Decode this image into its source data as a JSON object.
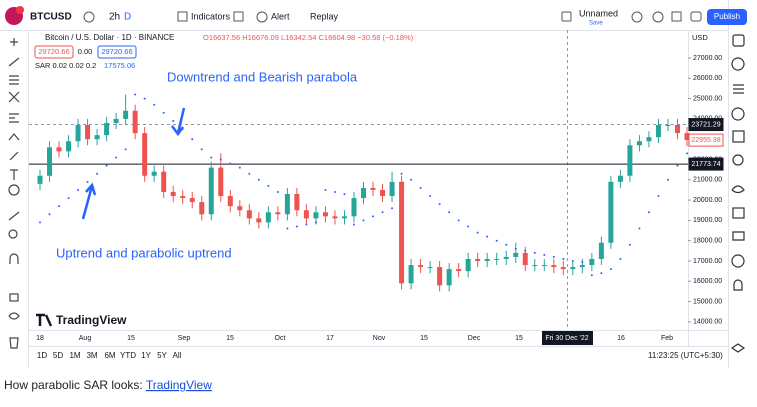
{
  "toolbar": {
    "symbol": "BTCUSD",
    "interval": "2h",
    "interval_active": "D",
    "indicators": "Indicators",
    "alert": "Alert",
    "replay": "Replay",
    "layout_name": "Unnamed",
    "save": "Save",
    "publish": "Publish"
  },
  "legend": {
    "title": "Bitcoin / U.S. Dollar · 1D · BINANCE",
    "ohlc": "O16637.56 H16676.09 L16342.54 C16604.98 −30.58 (−0.18%)",
    "sell": "29720.66",
    "spread": "0.00",
    "buy": "29720.66",
    "indicator": "SAR 0.02 0.02 0.2",
    "indicator_value": "17575.06"
  },
  "annotations": [
    "Downtrend and Bearish parabola",
    "Uptrend and parabolic uptrend"
  ],
  "watermark": "TradingView",
  "chart": {
    "type": "candlestick",
    "currency": "USD",
    "up_color": "#26a69a",
    "down_color": "#ef5350",
    "sar_color": "#2962ff",
    "ylim": [
      13600,
      28380
    ],
    "yticks": [
      {
        "value": 27000,
        "label": "27000.00"
      },
      {
        "value": 26000,
        "label": "26000.00"
      },
      {
        "value": 25000,
        "label": "25000.00"
      },
      {
        "value": 24000,
        "label": "24000.00"
      },
      {
        "value": 23000,
        "label": "23000.00"
      },
      {
        "value": 22000,
        "label": "22000.00"
      },
      {
        "value": 21000,
        "label": "21000.00"
      },
      {
        "value": 20000,
        "label": "20000.00"
      },
      {
        "value": 19000,
        "label": "19000.00"
      },
      {
        "value": 18000,
        "label": "18000.00"
      },
      {
        "value": 17000,
        "label": "17000.00"
      },
      {
        "value": 16000,
        "label": "16000.00"
      },
      {
        "value": 15000,
        "label": "15000.00"
      },
      {
        "value": 14000,
        "label": "14000.00"
      }
    ],
    "time_labels": [
      "18",
      "Aug",
      "15",
      "Sep",
      "15",
      "Oct",
      "17",
      "Nov",
      "15",
      "Dec",
      "15",
      "16",
      "Feb"
    ],
    "crosshair_label": "Fri 30 Dec '22",
    "price_lines": [
      {
        "value": 23721.29,
        "label": "23721.29"
      },
      {
        "value": 22955.38,
        "label": "22955.38"
      },
      {
        "value": 21773.74,
        "label": "21773.74"
      }
    ],
    "open": [
      20800,
      21200,
      22600,
      22400,
      22900,
      23700,
      23000,
      23200,
      23800,
      24000,
      24400,
      23300,
      21200,
      21400,
      20400,
      20200,
      20100,
      19900,
      19300,
      21600,
      20200,
      19700,
      19500,
      19100,
      18900,
      19400,
      19300,
      20300,
      19500,
      19100,
      19400,
      19200,
      19100,
      19200,
      20100,
      20600,
      20500,
      20200,
      20900,
      15900,
      16800,
      16700,
      16700,
      15800,
      16600,
      16500,
      17100,
      17000,
      17100,
      17100,
      17200,
      17400,
      16800,
      16800,
      16800,
      16700,
      16600,
      16700,
      16800,
      17100,
      17900,
      20900,
      21200,
      22700,
      22900,
      23100,
      23700,
      23700,
      23300
    ],
    "high": [
      21500,
      22900,
      22900,
      23200,
      24000,
      24000,
      23500,
      24100,
      24300,
      25200,
      24700,
      23600,
      21700,
      21700,
      20700,
      20500,
      20400,
      20200,
      21900,
      22300,
      20500,
      20000,
      19800,
      19400,
      19700,
      19700,
      20600,
      20600,
      19800,
      19700,
      19700,
      19500,
      19500,
      20400,
      20900,
      20900,
      20800,
      21400,
      21200,
      17100,
      17100,
      17000,
      17000,
      16900,
      16900,
      17400,
      17400,
      17400,
      17400,
      17500,
      17900,
      17700,
      17100,
      17100,
      17100,
      17000,
      17000,
      17100,
      17400,
      18200,
      21200,
      21500,
      23000,
      23200,
      23400,
      24000,
      24000,
      24000,
      23600
    ],
    "low": [
      20500,
      20900,
      22100,
      22100,
      22600,
      22700,
      22700,
      22900,
      23500,
      23700,
      23000,
      20900,
      20900,
      20100,
      19900,
      19800,
      19600,
      19000,
      19000,
      19900,
      19400,
      19200,
      18800,
      18600,
      18600,
      19000,
      19000,
      19200,
      18800,
      18800,
      18900,
      18800,
      18800,
      18900,
      19800,
      20200,
      19900,
      19900,
      15600,
      15600,
      16400,
      16400,
      15500,
      15500,
      16200,
      16200,
      16700,
      16700,
      16800,
      16800,
      16900,
      16500,
      16500,
      16500,
      16400,
      16300,
      16300,
      16400,
      16500,
      16800,
      17600,
      20600,
      20900,
      22400,
      22600,
      22800,
      23400,
      23000,
      22655
    ],
    "close": [
      21200,
      22600,
      22400,
      22900,
      23700,
      23000,
      23200,
      23800,
      24000,
      24400,
      23300,
      21200,
      21400,
      20400,
      20200,
      20100,
      19900,
      19300,
      21600,
      20200,
      19700,
      19500,
      19100,
      18900,
      19400,
      19300,
      20300,
      19500,
      19100,
      19400,
      19200,
      19100,
      19200,
      20100,
      20600,
      20500,
      20200,
      20900,
      15900,
      16800,
      16700,
      16700,
      15800,
      16600,
      16500,
      17100,
      17000,
      17100,
      17100,
      17200,
      17400,
      16800,
      16800,
      16800,
      16700,
      16600,
      16700,
      16800,
      17100,
      17900,
      20900,
      21200,
      22700,
      22900,
      23100,
      23700,
      23700,
      23300,
      22955
    ],
    "sar": [
      18900,
      19300,
      19700,
      20100,
      20500,
      20900,
      21300,
      21700,
      22100,
      22500,
      25200,
      25000,
      24700,
      24300,
      23900,
      23500,
      23000,
      22500,
      22100,
      22000,
      21800,
      21600,
      21300,
      21000,
      20700,
      20400,
      18600,
      18700,
      18800,
      18900,
      20500,
      20400,
      20300,
      18800,
      19000,
      19200,
      19400,
      19600,
      21300,
      21000,
      20600,
      20200,
      19800,
      19400,
      19000,
      18700,
      18400,
      18200,
      18000,
      17800,
      17600,
      17500,
      17400,
      17300,
      17200,
      17100,
      17000,
      16950,
      16300,
      16400,
      16600,
      17100,
      17800,
      18600,
      19400,
      20200,
      21000,
      21700,
      22300
    ]
  },
  "bottom": {
    "periods": [
      "1D",
      "5D",
      "1M",
      "3M",
      "6M",
      "YTD",
      "1Y",
      "5Y",
      "All"
    ],
    "clock": "11:23:25 (UTC+5:30)"
  },
  "caption": {
    "text": "How parabolic SAR looks: ",
    "link": "TradingView"
  }
}
